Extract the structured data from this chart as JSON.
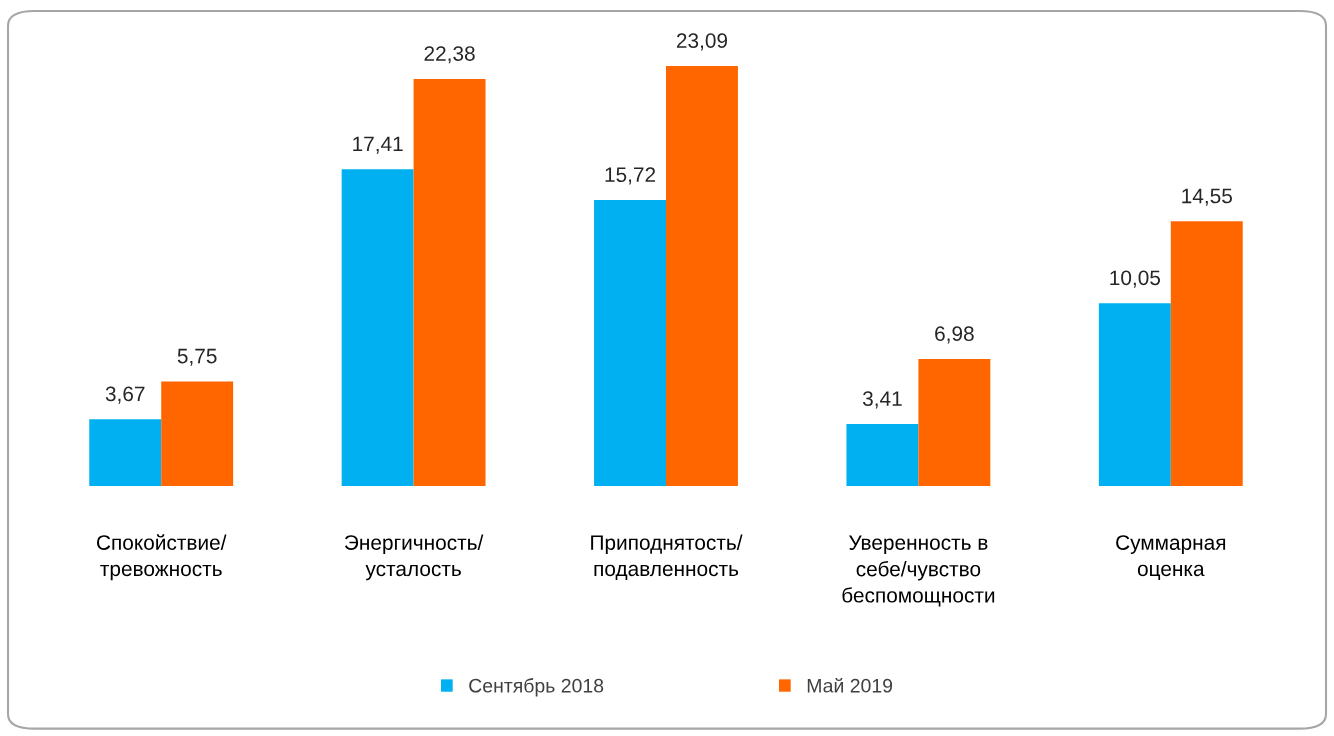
{
  "chart_data": {
    "type": "bar",
    "categories": [
      "Спокойствие/\nтревожность",
      "Энергичность/\nусталость",
      "Приподнятость/\nподавленность",
      "Уверенность в\nсебе/чувство\nбеспомощности",
      "Суммарная\nоценка"
    ],
    "series": [
      {
        "name": "Сентябрь 2018",
        "color": "#00b0f0",
        "values": [
          3.67,
          17.41,
          15.72,
          3.41,
          10.05
        ],
        "value_labels": [
          "3,67",
          "17,41",
          "15,72",
          "3,41",
          "10,05"
        ]
      },
      {
        "name": "Май 2019",
        "color": "#ff6600",
        "values": [
          5.75,
          22.38,
          23.09,
          6.98,
          14.55
        ],
        "value_labels": [
          "5,75",
          "22,38",
          "23,09",
          "6,98",
          "14,55"
        ]
      }
    ],
    "tick_labels": "x",
    "grid": false,
    "legend": "bottom"
  }
}
